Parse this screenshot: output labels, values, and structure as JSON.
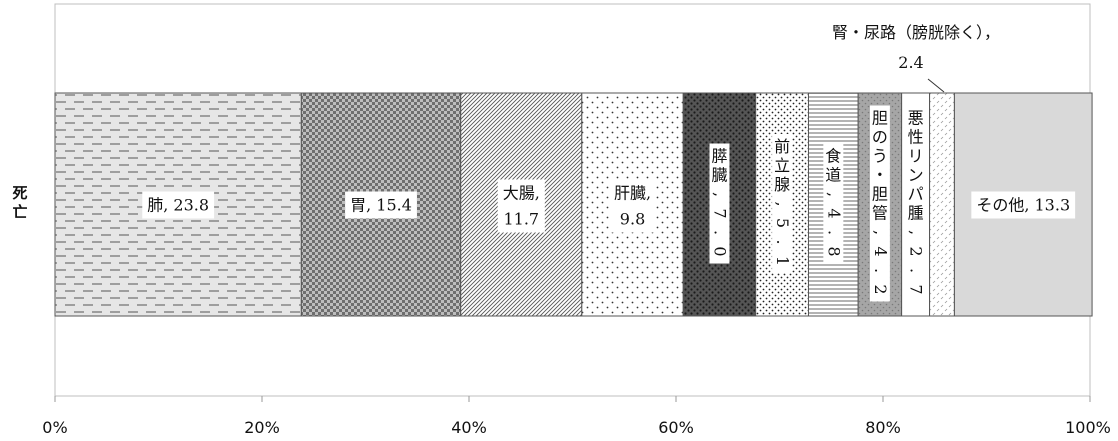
{
  "chart_data": {
    "type": "bar",
    "orientation": "horizontal-stacked-100",
    "category": "死亡",
    "xlim": [
      0,
      100
    ],
    "x_ticks": [
      "0%",
      "20%",
      "40%",
      "60%",
      "80%",
      "100%"
    ],
    "series": [
      {
        "name": "肺",
        "value": 23.8,
        "label": "肺, 23.8",
        "pattern": "dash"
      },
      {
        "name": "胃",
        "value": 15.4,
        "label": "胃, 15.4",
        "pattern": "check"
      },
      {
        "name": "大腸",
        "value": 11.7,
        "label": "大腸, 11.7",
        "pattern": "diag"
      },
      {
        "name": "肝臓",
        "value": 9.8,
        "label": "肝臓, 9.8",
        "pattern": "dots"
      },
      {
        "name": "膵臓",
        "value": 7.0,
        "label": "膵臓, 7.0",
        "pattern": "darkdots"
      },
      {
        "name": "前立腺",
        "value": 5.1,
        "label": "前立腺, 5.1",
        "pattern": "finedots"
      },
      {
        "name": "食道",
        "value": 4.8,
        "label": "食道, 4.8",
        "pattern": "hlines"
      },
      {
        "name": "胆のう・胆管",
        "value": 4.2,
        "label": "胆のう・胆管, 4.2",
        "pattern": "darkgray"
      },
      {
        "name": "悪性リンパ腫",
        "value": 2.7,
        "label": "悪性リンパ腫, 2.7",
        "pattern": "white"
      },
      {
        "name": "腎・尿路（膀胱除く）",
        "value": 2.4,
        "label_line1": "腎・尿路（膀胱除く），",
        "label_line2": "2.4",
        "pattern": "lightdiag"
      },
      {
        "name": "その他",
        "value": 13.3,
        "label": "その他, 13.3",
        "pattern": "solidgray"
      }
    ],
    "colors": {
      "border": "#555555",
      "solidgray": "#d9d9d9",
      "darkgray": "#a6a6a6"
    }
  }
}
